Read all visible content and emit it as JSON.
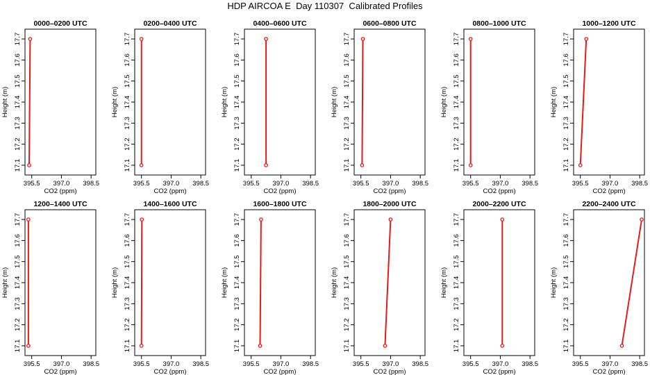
{
  "figure": {
    "title": "HDP AIRCOA E  Day 110307  Calibrated Profiles"
  },
  "chart_data": [
    {
      "type": "line",
      "title": "0000–0200 UTC",
      "xlabel": "CO2 (ppm)",
      "ylabel": "Height (m)",
      "xlim": [
        395.3,
        398.6
      ],
      "ylim": [
        17.08,
        17.72
      ],
      "xticks": [
        "395.5",
        "397.0",
        "398.5"
      ],
      "yticks": [
        "17.1",
        "17.2",
        "17.3",
        "17.4",
        "17.5",
        "17.6",
        "17.7"
      ],
      "grid": false,
      "series": [
        {
          "color": "#e41a1c",
          "points": [
            {
              "x": 395.37,
              "y": 17.1
            },
            {
              "x": 395.42,
              "y": 17.7
            }
          ]
        }
      ]
    },
    {
      "type": "line",
      "title": "0200–0400 UTC",
      "xlabel": "CO2 (ppm)",
      "ylabel": "Height (m)",
      "xlim": [
        395.3,
        398.6
      ],
      "ylim": [
        17.08,
        17.72
      ],
      "xticks": [
        "395.5",
        "397.0",
        "398.5"
      ],
      "yticks": [
        "17.1",
        "17.2",
        "17.3",
        "17.4",
        "17.5",
        "17.6",
        "17.7"
      ],
      "grid": false,
      "series": [
        {
          "color": "#e41a1c",
          "points": [
            {
              "x": 395.5,
              "y": 17.1
            },
            {
              "x": 395.5,
              "y": 17.7
            }
          ]
        }
      ]
    },
    {
      "type": "line",
      "title": "0400–0600 UTC",
      "xlabel": "CO2 (ppm)",
      "ylabel": "Height (m)",
      "xlim": [
        395.3,
        398.6
      ],
      "ylim": [
        17.08,
        17.72
      ],
      "xticks": [
        "395.5",
        "397.0",
        "398.5"
      ],
      "yticks": [
        "17.1",
        "17.2",
        "17.3",
        "17.4",
        "17.5",
        "17.6",
        "17.7"
      ],
      "grid": false,
      "series": [
        {
          "color": "#e41a1c",
          "points": [
            {
              "x": 396.25,
              "y": 17.1
            },
            {
              "x": 396.25,
              "y": 17.7
            }
          ]
        }
      ]
    },
    {
      "type": "line",
      "title": "0600–0800 UTC",
      "xlabel": "CO2 (ppm)",
      "ylabel": "Height (m)",
      "xlim": [
        395.3,
        398.6
      ],
      "ylim": [
        17.08,
        17.72
      ],
      "xticks": [
        "395.5",
        "397.0",
        "398.5"
      ],
      "yticks": [
        "17.1",
        "17.2",
        "17.3",
        "17.4",
        "17.5",
        "17.6",
        "17.7"
      ],
      "grid": false,
      "series": [
        {
          "color": "#e41a1c",
          "points": [
            {
              "x": 395.56,
              "y": 17.1
            },
            {
              "x": 395.6,
              "y": 17.7
            }
          ]
        }
      ]
    },
    {
      "type": "line",
      "title": "0800–1000 UTC",
      "xlabel": "CO2 (ppm)",
      "ylabel": "Height (m)",
      "xlim": [
        395.3,
        398.6
      ],
      "ylim": [
        17.08,
        17.72
      ],
      "xticks": [
        "395.5",
        "397.0",
        "398.5"
      ],
      "yticks": [
        "17.1",
        "17.2",
        "17.3",
        "17.4",
        "17.5",
        "17.6",
        "17.7"
      ],
      "grid": false,
      "series": [
        {
          "color": "#e41a1c",
          "points": [
            {
              "x": 395.5,
              "y": 17.1
            },
            {
              "x": 395.5,
              "y": 17.7
            }
          ]
        }
      ]
    },
    {
      "type": "line",
      "title": "1000–1200 UTC",
      "xlabel": "CO2 (ppm)",
      "ylabel": "Height (m)",
      "xlim": [
        395.3,
        398.6
      ],
      "ylim": [
        17.08,
        17.72
      ],
      "xticks": [
        "395.5",
        "397.0",
        "398.5"
      ],
      "yticks": [
        "17.1",
        "17.2",
        "17.3",
        "17.4",
        "17.5",
        "17.6",
        "17.7"
      ],
      "grid": false,
      "series": [
        {
          "color": "#e41a1c",
          "points": [
            {
              "x": 395.5,
              "y": 17.1
            },
            {
              "x": 395.8,
              "y": 17.7
            }
          ]
        }
      ]
    },
    {
      "type": "line",
      "title": "1200–1400 UTC",
      "xlabel": "CO2 (ppm)",
      "ylabel": "Height (m)",
      "xlim": [
        395.3,
        398.6
      ],
      "ylim": [
        17.08,
        17.72
      ],
      "xticks": [
        "395.5",
        "397.0",
        "398.5"
      ],
      "yticks": [
        "17.1",
        "17.2",
        "17.3",
        "17.4",
        "17.5",
        "17.6",
        "17.7"
      ],
      "grid": false,
      "series": [
        {
          "color": "#e41a1c",
          "points": [
            {
              "x": 395.33,
              "y": 17.1
            },
            {
              "x": 395.33,
              "y": 17.7
            }
          ]
        }
      ]
    },
    {
      "type": "line",
      "title": "1400–1600 UTC",
      "xlabel": "CO2 (ppm)",
      "ylabel": "Height (m)",
      "xlim": [
        395.3,
        398.6
      ],
      "ylim": [
        17.08,
        17.72
      ],
      "xticks": [
        "395.5",
        "397.0",
        "398.5"
      ],
      "yticks": [
        "17.1",
        "17.2",
        "17.3",
        "17.4",
        "17.5",
        "17.6",
        "17.7"
      ],
      "grid": false,
      "series": [
        {
          "color": "#e41a1c",
          "points": [
            {
              "x": 395.5,
              "y": 17.1
            },
            {
              "x": 395.52,
              "y": 17.7
            }
          ]
        }
      ]
    },
    {
      "type": "line",
      "title": "1600–1800 UTC",
      "xlabel": "CO2 (ppm)",
      "ylabel": "Height (m)",
      "xlim": [
        395.3,
        398.6
      ],
      "ylim": [
        17.08,
        17.72
      ],
      "xticks": [
        "395.5",
        "397.0",
        "398.5"
      ],
      "yticks": [
        "17.1",
        "17.2",
        "17.3",
        "17.4",
        "17.5",
        "17.6",
        "17.7"
      ],
      "grid": false,
      "series": [
        {
          "color": "#e41a1c",
          "points": [
            {
              "x": 395.95,
              "y": 17.1
            },
            {
              "x": 396.0,
              "y": 17.7
            }
          ]
        }
      ]
    },
    {
      "type": "line",
      "title": "1800–2000 UTC",
      "xlabel": "CO2 (ppm)",
      "ylabel": "Height (m)",
      "xlim": [
        395.3,
        398.6
      ],
      "ylim": [
        17.08,
        17.72
      ],
      "xticks": [
        "395.5",
        "397.0",
        "398.5"
      ],
      "yticks": [
        "17.1",
        "17.2",
        "17.3",
        "17.4",
        "17.5",
        "17.6",
        "17.7"
      ],
      "grid": false,
      "series": [
        {
          "color": "#e41a1c",
          "points": [
            {
              "x": 396.72,
              "y": 17.1
            },
            {
              "x": 397.0,
              "y": 17.7
            }
          ]
        }
      ]
    },
    {
      "type": "line",
      "title": "2000–2200 UTC",
      "xlabel": "CO2 (ppm)",
      "ylabel": "Height (m)",
      "xlim": [
        395.3,
        398.6
      ],
      "ylim": [
        17.08,
        17.72
      ],
      "xticks": [
        "395.5",
        "397.0",
        "398.5"
      ],
      "yticks": [
        "17.1",
        "17.2",
        "17.3",
        "17.4",
        "17.5",
        "17.6",
        "17.7"
      ],
      "grid": false,
      "series": [
        {
          "color": "#e41a1c",
          "points": [
            {
              "x": 397.1,
              "y": 17.1
            },
            {
              "x": 397.1,
              "y": 17.7
            }
          ]
        }
      ]
    },
    {
      "type": "line",
      "title": "2200–2400 UTC",
      "xlabel": "CO2 (ppm)",
      "ylabel": "Height (m)",
      "xlim": [
        395.3,
        398.6
      ],
      "ylim": [
        17.08,
        17.72
      ],
      "xticks": [
        "395.5",
        "397.0",
        "398.5"
      ],
      "yticks": [
        "17.1",
        "17.2",
        "17.3",
        "17.4",
        "17.5",
        "17.6",
        "17.7"
      ],
      "grid": false,
      "series": [
        {
          "color": "#e41a1c",
          "points": [
            {
              "x": 397.6,
              "y": 17.1
            },
            {
              "x": 398.6,
              "y": 17.7
            }
          ]
        }
      ]
    }
  ]
}
